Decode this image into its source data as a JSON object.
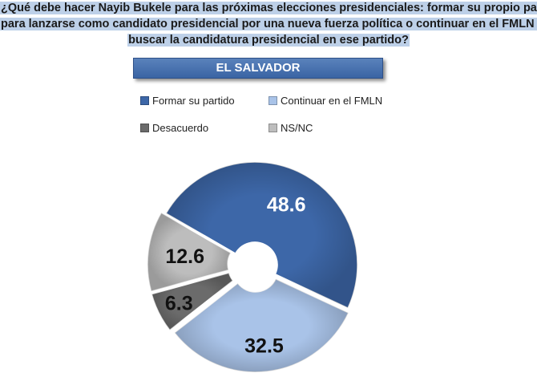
{
  "question": {
    "line1": "¿Qué debe hacer Nayib Bukele para las próximas elecciones presidenciales: formar su propio partido",
    "line2": "para lanzarse como candidato presidencial por una nueva fuerza política o continuar en el FMLN para",
    "line3": "buscar la candidatura presidencial en ese partido?"
  },
  "banner": "EL SALVADOR",
  "chart_data": {
    "type": "pie",
    "style": "donut",
    "labels": [
      "Formar su partido",
      "Continuar en el FMLN",
      "Desacuerdo",
      "NS/NC"
    ],
    "values": [
      48.6,
      32.5,
      6.3,
      12.6
    ],
    "colors": [
      "#3d67a8",
      "#a9c3e8",
      "#6b6b6b",
      "#bdbdbd"
    ],
    "legend_position": "top"
  }
}
